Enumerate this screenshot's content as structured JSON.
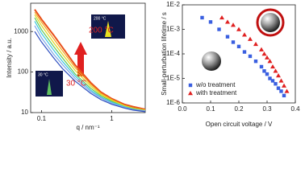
{
  "chart_data": [
    {
      "type": "line",
      "xlabel": "q / nm⁻¹",
      "ylabel": "Intensity / a.u.",
      "xlog": true,
      "ylog": true,
      "xlim": [
        0.07,
        3
      ],
      "ylim": [
        10,
        5000
      ],
      "xticks": [
        0.1,
        1
      ],
      "yticks": [
        10,
        100,
        1000
      ],
      "x": [
        0.08,
        0.1,
        0.15,
        0.2,
        0.3,
        0.5,
        0.7,
        1,
        1.5,
        2,
        3
      ],
      "series": [
        {
          "color": "#e8501a",
          "values": [
            3500,
            2000,
            800,
            400,
            150,
            55,
            32,
            22,
            16,
            14,
            12
          ]
        },
        {
          "color": "#f5a623",
          "values": [
            3000,
            1700,
            650,
            330,
            130,
            50,
            30,
            21,
            15,
            13,
            11.5
          ]
        },
        {
          "color": "#e0d820",
          "values": [
            2600,
            1400,
            520,
            270,
            110,
            45,
            28,
            20,
            15,
            13,
            11.5
          ]
        },
        {
          "color": "#5ec850",
          "values": [
            2200,
            1100,
            420,
            220,
            90,
            40,
            26,
            19,
            14,
            12.5,
            11
          ]
        },
        {
          "color": "#40c8e0",
          "values": [
            1800,
            900,
            340,
            180,
            80,
            36,
            24,
            18,
            14,
            12,
            11
          ]
        },
        {
          "color": "#80a8e8",
          "values": [
            1400,
            700,
            270,
            150,
            70,
            33,
            23,
            17,
            13.5,
            12,
            11
          ]
        },
        {
          "color": "#3050c0",
          "values": [
            1000,
            550,
            220,
            120,
            60,
            30,
            21,
            16,
            13,
            11.5,
            10.5
          ]
        }
      ],
      "annotations": [
        "200 °C",
        "30 °C"
      ],
      "inset_labels": [
        "200 °C",
        "30 °C"
      ]
    },
    {
      "type": "scatter",
      "xlabel": "Open circuit voltage / V",
      "ylabel": "Small-perturbation lifetime / s",
      "ylog": true,
      "xlim": [
        0,
        0.4
      ],
      "ylim": [
        1e-06,
        0.01
      ],
      "xticks": [
        {
          "value": 0,
          "label": "0.0"
        },
        0.1,
        0.2,
        0.3,
        0.4
      ],
      "yticks": [
        {
          "value": 1e-06,
          "label": "1E-6"
        },
        {
          "value": 1e-05,
          "label": "1E-5"
        },
        {
          "value": 0.0001,
          "label": "1E-4"
        },
        {
          "value": 0.001,
          "label": "1E-3"
        },
        {
          "value": 0.01,
          "label": "1E-2"
        }
      ],
      "legend": "lower left",
      "series": [
        {
          "name": "w/o treatment",
          "color": "#3a5fe0",
          "marker": "square",
          "x": [
            0.07,
            0.1,
            0.13,
            0.16,
            0.18,
            0.2,
            0.22,
            0.24,
            0.26,
            0.28,
            0.29,
            0.3,
            0.31,
            0.32,
            0.33,
            0.34,
            0.35,
            0.36
          ],
          "values": [
            0.003,
            0.002,
            0.001,
            0.0005,
            0.0003,
            0.0002,
            0.00012,
            8e-05,
            5e-05,
            3e-05,
            2e-05,
            1.5e-05,
            1e-05,
            8e-06,
            6e-06,
            4e-06,
            3e-06,
            2e-06
          ]
        },
        {
          "name": "with treatment",
          "color": "#e02020",
          "marker": "triangle",
          "x": [
            0.14,
            0.16,
            0.18,
            0.2,
            0.22,
            0.24,
            0.26,
            0.28,
            0.29,
            0.3,
            0.31,
            0.32,
            0.33,
            0.34,
            0.35,
            0.36,
            0.37
          ],
          "values": [
            0.003,
            0.002,
            0.0015,
            0.001,
            0.0006,
            0.0004,
            0.00025,
            0.00015,
            0.0001,
            7e-05,
            5e-05,
            3e-05,
            2e-05,
            1.3e-05,
            8e-06,
            5e-06,
            3e-06
          ]
        }
      ]
    }
  ]
}
